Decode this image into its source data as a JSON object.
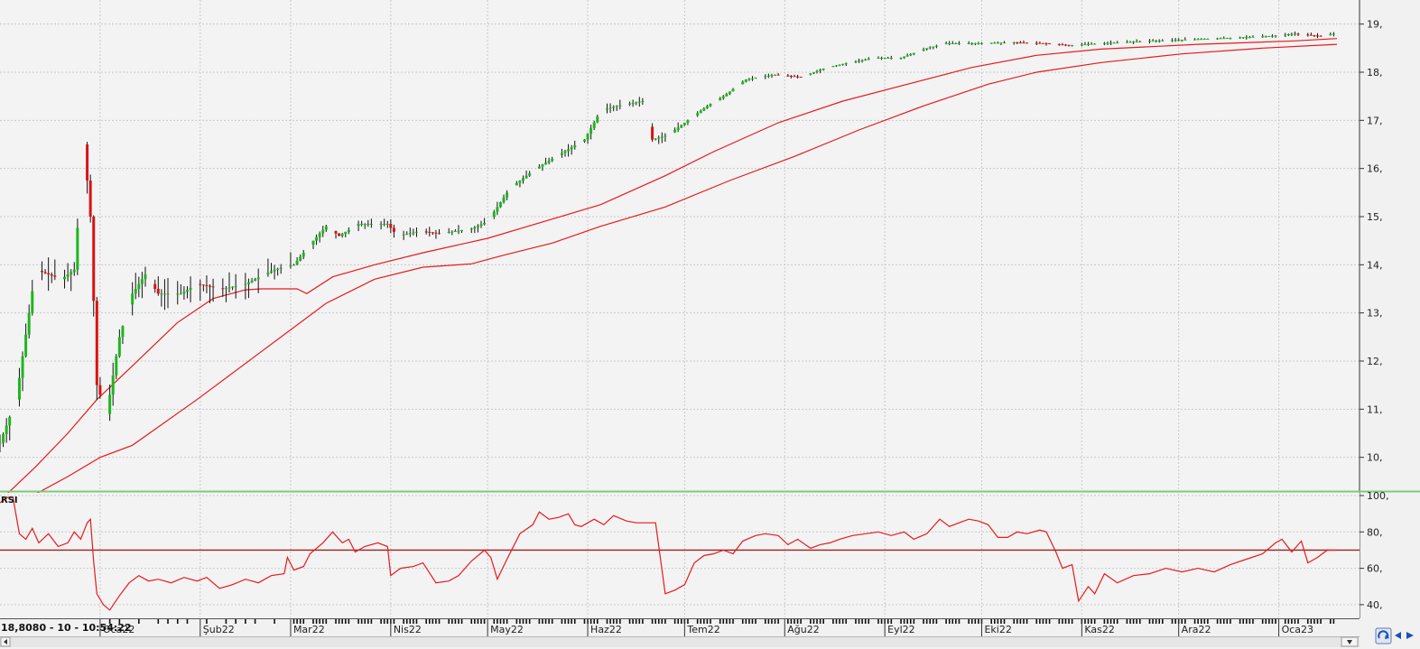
{
  "status_readout": "18,8080 - 10 - 10:54:22",
  "chart_data": [
    {
      "type": "candlestick",
      "title": "",
      "x_tick_labels": [
        "Oca22",
        "Şub22",
        "Mar22",
        "Nis22",
        "May22",
        "Haz22",
        "Tem22",
        "Ağu22",
        "Eyl22",
        "Eki22",
        "Kas22",
        "Ara22",
        "Oca23"
      ],
      "y_tick_labels": [
        "10,",
        "11,",
        "12,",
        "13,",
        "14,",
        "15,",
        "16,",
        "17,",
        "18,",
        "19,"
      ],
      "y_ticks": [
        10,
        11,
        12,
        13,
        14,
        15,
        16,
        17,
        18,
        19
      ],
      "ylim": [
        9.3,
        19.5
      ],
      "x_range_days": [
        -31,
        390
      ],
      "grid": true,
      "colors": {
        "up": "#1db71d",
        "down": "#dd1111",
        "ma": "#e8191d",
        "wick": "#111111"
      },
      "price_path": [
        [
          -31,
          10.3
        ],
        [
          -26,
          11.2
        ],
        [
          -20,
          13.9
        ],
        [
          -12,
          13.7
        ],
        [
          -8,
          13.9
        ],
        [
          -5,
          16.5
        ],
        [
          -3,
          15.0
        ],
        [
          -1,
          11.5
        ],
        [
          2,
          10.9
        ],
        [
          6,
          12.5
        ],
        [
          10,
          13.4
        ],
        [
          14,
          13.8
        ],
        [
          18,
          13.4
        ],
        [
          25,
          13.4
        ],
        [
          30,
          13.6
        ],
        [
          38,
          13.5
        ],
        [
          45,
          13.6
        ],
        [
          54,
          13.9
        ],
        [
          60,
          14.0
        ],
        [
          66,
          14.5
        ],
        [
          70,
          14.8
        ],
        [
          74,
          14.6
        ],
        [
          80,
          14.85
        ],
        [
          89,
          14.85
        ],
        [
          92,
          14.6
        ],
        [
          99,
          14.7
        ],
        [
          105,
          14.65
        ],
        [
          115,
          14.75
        ],
        [
          120,
          14.9
        ],
        [
          127,
          15.6
        ],
        [
          135,
          16.0
        ],
        [
          145,
          16.4
        ],
        [
          150,
          16.6
        ],
        [
          155,
          17.2
        ],
        [
          160,
          17.3
        ],
        [
          168,
          17.4
        ],
        [
          171,
          16.6
        ],
        [
          176,
          16.7
        ],
        [
          182,
          17.0
        ],
        [
          188,
          17.3
        ],
        [
          193,
          17.5
        ],
        [
          200,
          17.85
        ],
        [
          209,
          17.95
        ],
        [
          217,
          17.9
        ],
        [
          225,
          18.1
        ],
        [
          232,
          18.2
        ],
        [
          240,
          18.3
        ],
        [
          248,
          18.3
        ],
        [
          256,
          18.5
        ],
        [
          262,
          18.6
        ],
        [
          270,
          18.6
        ],
        [
          283,
          18.62
        ],
        [
          293,
          18.6
        ],
        [
          300,
          18.56
        ],
        [
          310,
          18.6
        ],
        [
          325,
          18.65
        ],
        [
          345,
          18.7
        ],
        [
          362,
          18.75
        ],
        [
          370,
          18.8
        ],
        [
          378,
          18.75
        ],
        [
          382,
          18.8
        ]
      ],
      "ma_short": [
        [
          -31,
          9.1
        ],
        [
          -20,
          9.8
        ],
        [
          -10,
          10.5
        ],
        [
          -1,
          11.2
        ],
        [
          10,
          11.9
        ],
        [
          24,
          12.8
        ],
        [
          35,
          13.3
        ],
        [
          45,
          13.48
        ],
        [
          50,
          13.5
        ],
        [
          61,
          13.5
        ],
        [
          64,
          13.4
        ],
        [
          72,
          13.75
        ],
        [
          85,
          14.0
        ],
        [
          100,
          14.25
        ],
        [
          120,
          14.55
        ],
        [
          140,
          14.95
        ],
        [
          155,
          15.25
        ],
        [
          175,
          15.85
        ],
        [
          190,
          16.35
        ],
        [
          210,
          16.95
        ],
        [
          230,
          17.4
        ],
        [
          250,
          17.75
        ],
        [
          270,
          18.1
        ],
        [
          290,
          18.35
        ],
        [
          310,
          18.48
        ],
        [
          340,
          18.58
        ],
        [
          370,
          18.65
        ],
        [
          383,
          18.7
        ]
      ],
      "ma_long": [
        [
          -21,
          9.2
        ],
        [
          -10,
          9.6
        ],
        [
          0,
          10.0
        ],
        [
          10,
          10.25
        ],
        [
          30,
          11.2
        ],
        [
          50,
          12.2
        ],
        [
          70,
          13.2
        ],
        [
          85,
          13.7
        ],
        [
          100,
          13.95
        ],
        [
          115,
          14.02
        ],
        [
          125,
          14.2
        ],
        [
          140,
          14.45
        ],
        [
          155,
          14.8
        ],
        [
          175,
          15.2
        ],
        [
          195,
          15.75
        ],
        [
          215,
          16.25
        ],
        [
          235,
          16.8
        ],
        [
          255,
          17.3
        ],
        [
          275,
          17.75
        ],
        [
          290,
          18.0
        ],
        [
          310,
          18.2
        ],
        [
          335,
          18.38
        ],
        [
          360,
          18.5
        ],
        [
          383,
          18.58
        ]
      ]
    },
    {
      "type": "line",
      "title": "RSI",
      "y_tick_labels": [
        "100,",
        "80,",
        "60,",
        "40,"
      ],
      "y_ticks": [
        100,
        80,
        60,
        40
      ],
      "ylim": [
        33,
        101
      ],
      "threshold": 70,
      "colors": {
        "line": "#e8191d",
        "threshold": "#a02020"
      },
      "series": [
        {
          "values": [
            [
              -31,
              96
            ],
            [
              -29,
              99
            ],
            [
              -27,
              99
            ],
            [
              -25,
              79
            ],
            [
              -23,
              76
            ],
            [
              -21,
              82
            ],
            [
              -19,
              74
            ],
            [
              -16,
              79
            ],
            [
              -13,
              72
            ],
            [
              -10,
              74
            ],
            [
              -8,
              80
            ],
            [
              -6,
              76
            ],
            [
              -4,
              85
            ],
            [
              -3,
              87
            ],
            [
              -2,
              64
            ],
            [
              -1,
              46
            ],
            [
              1,
              40
            ],
            [
              3,
              37
            ],
            [
              6,
              45
            ],
            [
              9,
              52
            ],
            [
              12,
              56
            ],
            [
              15,
              53
            ],
            [
              18,
              54
            ],
            [
              22,
              52
            ],
            [
              26,
              55
            ],
            [
              30,
              53
            ],
            [
              33,
              55
            ],
            [
              37,
              49
            ],
            [
              41,
              51
            ],
            [
              45,
              54
            ],
            [
              49,
              52
            ],
            [
              53,
              56
            ],
            [
              57,
              57
            ],
            [
              58,
              66
            ],
            [
              60,
              59
            ],
            [
              63,
              61
            ],
            [
              65,
              68
            ],
            [
              69,
              74
            ],
            [
              72,
              80
            ],
            [
              75,
              74
            ],
            [
              77,
              76
            ],
            [
              79,
              69
            ],
            [
              82,
              72
            ],
            [
              86,
              74
            ],
            [
              89,
              72
            ],
            [
              90,
              56
            ],
            [
              93,
              60
            ],
            [
              97,
              61
            ],
            [
              100,
              63
            ],
            [
              104,
              52
            ],
            [
              108,
              53
            ],
            [
              111,
              56
            ],
            [
              115,
              64
            ],
            [
              119,
              70
            ],
            [
              121,
              66
            ],
            [
              123,
              54
            ],
            [
              126,
              65
            ],
            [
              130,
              79
            ],
            [
              134,
              84
            ],
            [
              136,
              91
            ],
            [
              139,
              87
            ],
            [
              142,
              88
            ],
            [
              145,
              90
            ],
            [
              147,
              84
            ],
            [
              149,
              83
            ],
            [
              153,
              87
            ],
            [
              156,
              84
            ],
            [
              159,
              89
            ],
            [
              163,
              86
            ],
            [
              166,
              85
            ],
            [
              172,
              85
            ],
            [
              175,
              46
            ],
            [
              178,
              48
            ],
            [
              181,
              51
            ],
            [
              184,
              63
            ],
            [
              187,
              67
            ],
            [
              190,
              68
            ],
            [
              193,
              70
            ],
            [
              196,
              68
            ],
            [
              199,
              75
            ],
            [
              203,
              78
            ],
            [
              206,
              79
            ],
            [
              210,
              78
            ],
            [
              213,
              73
            ],
            [
              216,
              76
            ],
            [
              220,
              71
            ],
            [
              223,
              73
            ],
            [
              226,
              74
            ],
            [
              229,
              76
            ],
            [
              233,
              78
            ],
            [
              237,
              79
            ],
            [
              241,
              80
            ],
            [
              245,
              78
            ],
            [
              249,
              80
            ],
            [
              252,
              76
            ],
            [
              256,
              79
            ],
            [
              260,
              87
            ],
            [
              263,
              83
            ],
            [
              266,
              85
            ],
            [
              269,
              87
            ],
            [
              272,
              86
            ],
            [
              275,
              84
            ],
            [
              278,
              77
            ],
            [
              281,
              77
            ],
            [
              284,
              80
            ],
            [
              287,
              79
            ],
            [
              291,
              81
            ],
            [
              293,
              80
            ],
            [
              296,
              69
            ],
            [
              298,
              60
            ],
            [
              301,
              62
            ],
            [
              303,
              42
            ],
            [
              306,
              50
            ],
            [
              308,
              46
            ],
            [
              311,
              57
            ],
            [
              315,
              52
            ],
            [
              320,
              56
            ],
            [
              325,
              57
            ],
            [
              330,
              60
            ],
            [
              335,
              58
            ],
            [
              340,
              60
            ],
            [
              345,
              58
            ],
            [
              350,
              62
            ],
            [
              355,
              65
            ],
            [
              360,
              68
            ],
            [
              364,
              74
            ],
            [
              366,
              76
            ],
            [
              369,
              69
            ],
            [
              372,
              75
            ],
            [
              374,
              63
            ],
            [
              377,
              66
            ],
            [
              380,
              70
            ],
            [
              383,
              70
            ]
          ]
        }
      ]
    }
  ]
}
